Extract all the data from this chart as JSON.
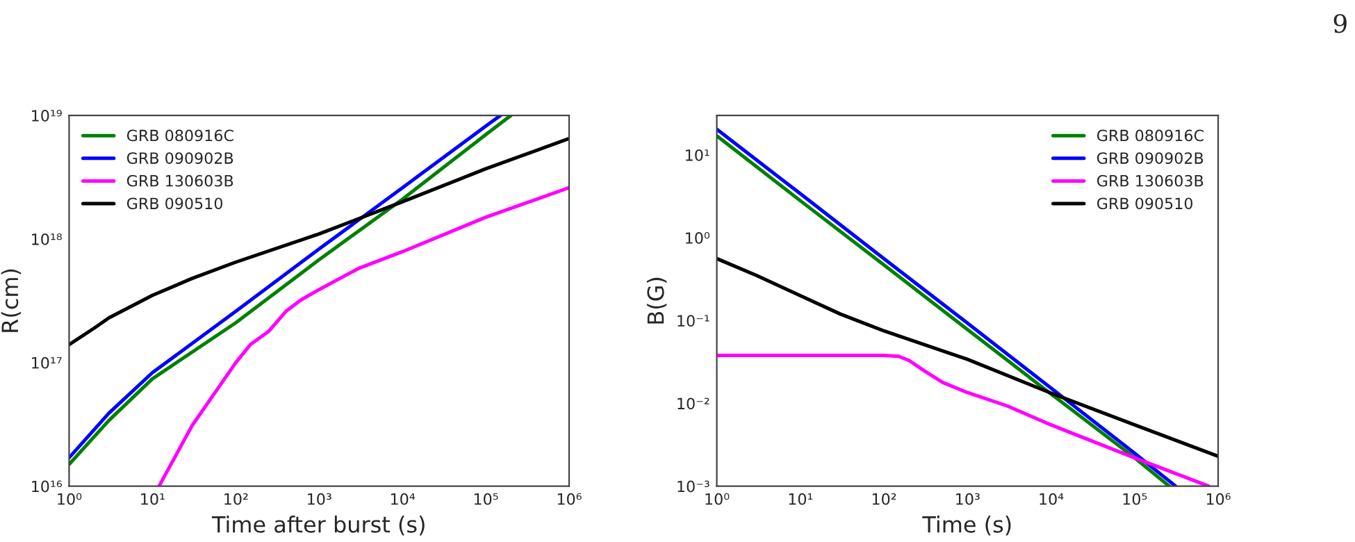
{
  "chart_data": [
    {
      "type": "line",
      "xlabel": "Time after burst (s)",
      "ylabel": "R(cm)",
      "log": "xy",
      "xlim": [
        1,
        1000000
      ],
      "ylim": [
        1e+16,
        1e+19
      ],
      "xticks": [
        {
          "value": 1,
          "label": "10⁰"
        },
        {
          "value": 10,
          "label": "10¹"
        },
        {
          "value": 100,
          "label": "10²"
        },
        {
          "value": 1000,
          "label": "10³"
        },
        {
          "value": 10000,
          "label": "10⁴"
        },
        {
          "value": 100000,
          "label": "10⁵"
        },
        {
          "value": 1000000,
          "label": "10⁶"
        }
      ],
      "yticks": [
        {
          "value": 1e+16,
          "label": "10¹⁶"
        },
        {
          "value": 1e+17,
          "label": "10¹⁷"
        },
        {
          "value": 1e+18,
          "label": "10¹⁸"
        },
        {
          "value": 1e+19,
          "label": "10¹⁹"
        }
      ],
      "legend": "top left",
      "grid": false,
      "series": [
        {
          "name": "GRB 080916C",
          "color": "#008000",
          "x": [
            1,
            3,
            10,
            100,
            1000,
            10000,
            100000,
            200000
          ],
          "values": [
            1.5e+16,
            3.4e+16,
            7.4e+16,
            2.1e+17,
            6.8e+17,
            2.1e+18,
            7e+18,
            1e+19
          ]
        },
        {
          "name": "GRB 090902B",
          "color": "#0000ff",
          "x": [
            1,
            3,
            10,
            100,
            1000,
            10000,
            100000,
            150000
          ],
          "values": [
            1.7e+16,
            3.9e+16,
            8.3e+16,
            2.6e+17,
            8.3e+17,
            2.6e+18,
            8.2e+18,
            1e+19
          ]
        },
        {
          "name": "GRB 130603B",
          "color": "#ff00ff",
          "x": [
            12,
            30,
            100,
            150,
            250,
            400,
            600,
            1000,
            3000,
            10000,
            100000,
            1000000
          ],
          "values": [
            1e+16,
            3.1e+16,
            1e+17,
            1.4e+17,
            1.8e+17,
            2.6e+17,
            3.2e+17,
            3.9e+17,
            5.8e+17,
            7.9e+17,
            1.5e+18,
            2.6e+18
          ]
        },
        {
          "name": "GRB 090510",
          "color": "#000000",
          "x": [
            1,
            2,
            3,
            10,
            30,
            100,
            1000,
            10000,
            100000,
            1000000
          ],
          "values": [
            1.4e+17,
            1.9e+17,
            2.3e+17,
            3.5e+17,
            4.8e+17,
            6.5e+17,
            1.1e+18,
            2e+18,
            3.7e+18,
            6.5e+18
          ]
        }
      ]
    },
    {
      "type": "line",
      "xlabel": "Time (s)",
      "ylabel": "B(G)",
      "log": "xy",
      "xlim": [
        1,
        1000000
      ],
      "ylim": [
        0.001,
        30
      ],
      "xticks": [
        {
          "value": 1,
          "label": "10⁰"
        },
        {
          "value": 10,
          "label": "10¹"
        },
        {
          "value": 100,
          "label": "10²"
        },
        {
          "value": 1000,
          "label": "10³"
        },
        {
          "value": 10000,
          "label": "10⁴"
        },
        {
          "value": 100000,
          "label": "10⁵"
        },
        {
          "value": 1000000,
          "label": "10⁶"
        }
      ],
      "yticks": [
        {
          "value": 0.001,
          "label": "10⁻³"
        },
        {
          "value": 0.01,
          "label": "10⁻²"
        },
        {
          "value": 0.1,
          "label": "10⁻¹"
        },
        {
          "value": 1,
          "label": "10⁰"
        },
        {
          "value": 10,
          "label": "10¹"
        }
      ],
      "legend": "top right",
      "grid": false,
      "annotations": [
        "9"
      ],
      "series": [
        {
          "name": "GRB 080916C",
          "color": "#008000",
          "x": [
            1,
            10,
            100,
            1000,
            10000,
            100000,
            260000
          ],
          "values": [
            17,
            2.8,
            0.47,
            0.078,
            0.013,
            0.0022,
            0.001
          ]
        },
        {
          "name": "GRB 090902B",
          "color": "#0000ff",
          "x": [
            1,
            10,
            100,
            1000,
            10000,
            100000,
            310000
          ],
          "values": [
            20.4,
            3.4,
            0.56,
            0.093,
            0.0153,
            0.0025,
            0.001
          ]
        },
        {
          "name": "GRB 130603B",
          "color": "#ff00ff",
          "x": [
            1,
            10,
            100,
            150,
            200,
            300,
            500,
            1000,
            3000,
            10000,
            100000,
            770000
          ],
          "values": [
            0.038,
            0.038,
            0.038,
            0.037,
            0.033,
            0.025,
            0.018,
            0.0135,
            0.0093,
            0.0055,
            0.0022,
            0.001
          ]
        },
        {
          "name": "GRB 090510",
          "color": "#000000",
          "x": [
            1,
            3,
            10,
            30,
            100,
            1000,
            10000,
            100000,
            1000000
          ],
          "values": [
            0.56,
            0.35,
            0.2,
            0.12,
            0.075,
            0.034,
            0.0133,
            0.0055,
            0.0023
          ]
        }
      ]
    }
  ]
}
